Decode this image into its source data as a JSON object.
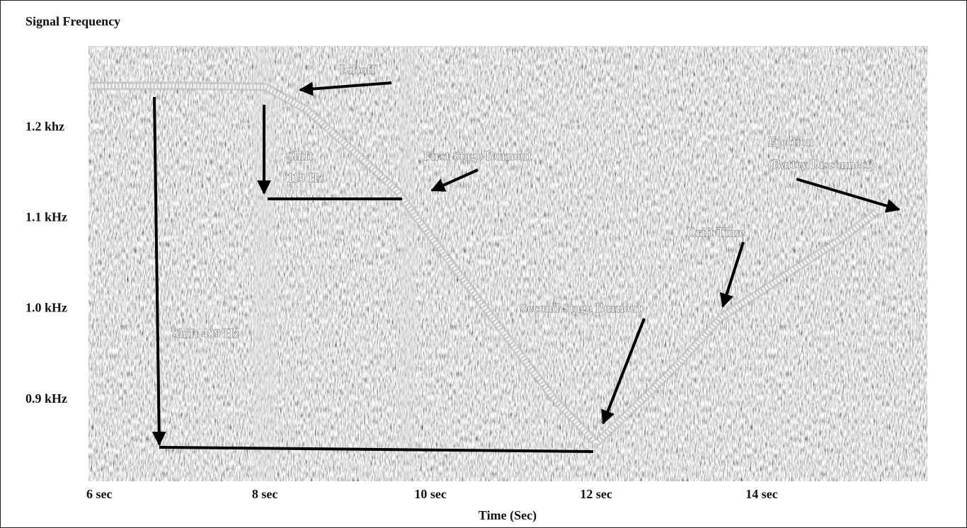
{
  "chart_data": {
    "type": "line",
    "title": "Signal Frequency",
    "x_label": "Time (Sec)",
    "x": [
      5.9,
      7,
      8,
      8.5,
      9,
      9.6,
      10,
      10.5,
      11,
      11.5,
      12,
      12.5,
      13,
      13.5,
      14,
      14.5,
      15,
      15.4
    ],
    "values": [
      1.246,
      1.246,
      1.245,
      1.22,
      1.18,
      1.13,
      1.08,
      1.02,
      0.96,
      0.9,
      0.852,
      0.895,
      0.94,
      0.99,
      1.02,
      1.05,
      1.08,
      1.108
    ],
    "color": "#f2f2f2",
    "xlim": [
      5.87,
      16.0
    ],
    "ylim": [
      0.81,
      1.29
    ],
    "xticks": [
      {
        "value": 6,
        "label": "6 sec"
      },
      {
        "value": 8,
        "label": "8 sec"
      },
      {
        "value": 10,
        "label": "10 sec"
      },
      {
        "value": 12,
        "label": "12 sec"
      },
      {
        "value": 14,
        "label": "14 sec"
      }
    ],
    "yticks": [
      {
        "value": 1.2,
        "label": "1.2 khz"
      },
      {
        "value": 1.1,
        "label": "1.1 kHz"
      },
      {
        "value": 1.0,
        "label": "1.0 kHz"
      },
      {
        "value": 0.9,
        "label": "0.9 kHz"
      }
    ],
    "grid": false,
    "annotations": [
      "Liftoff",
      "Shift",
      "119 Hz",
      "First Stage Burnout",
      "Ejection",
      "(Battey Disconnect)",
      "Drift Time",
      "Second Stage Burnout",
      "Shift  409 Hz"
    ]
  }
}
